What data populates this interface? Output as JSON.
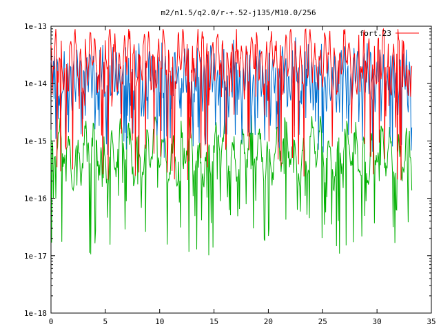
{
  "chart_data": {
    "type": "line",
    "title": "m2/n1.5/q2.0/r-+.52-j135/M10.0/256",
    "xlabel": "",
    "ylabel": "",
    "xlim": [
      0,
      35
    ],
    "ylim": [
      1e-18,
      1e-13
    ],
    "y_scale": "log",
    "grid": false,
    "legend_position": "top-right",
    "x_ticks": [
      0,
      5,
      10,
      15,
      20,
      25,
      30,
      35
    ],
    "x_tick_labels": [
      "0",
      "5",
      "10",
      "15",
      "20",
      "25",
      "30",
      "35"
    ],
    "y_ticks": [
      1e-18,
      1e-17,
      1e-16,
      1e-15,
      1e-14,
      1e-13
    ],
    "y_tick_labels": [
      "1e-18",
      "1e-17",
      "1e-16",
      "1e-15",
      "1e-14",
      "1e-13"
    ],
    "series": [
      {
        "name": "fort.23",
        "color": "#ff0000",
        "x_range": [
          0,
          33.2
        ],
        "samples": 600,
        "base_log10": -13.6,
        "dip_log10": -15.3,
        "oscillation_period": 0.45,
        "seed": 11
      },
      {
        "name": "",
        "color": "#0070d0",
        "x_range": [
          0,
          33.2
        ],
        "samples": 600,
        "base_log10": -13.9,
        "dip_log10": -14.9,
        "oscillation_period": 0.3,
        "seed": 23
      },
      {
        "name": "",
        "color": "#00b000",
        "x_range": [
          0,
          33.2
        ],
        "samples": 600,
        "base_log10": -15.2,
        "dip_log10": -16.6,
        "oscillation_period": 0.8,
        "seed": 37
      }
    ]
  }
}
